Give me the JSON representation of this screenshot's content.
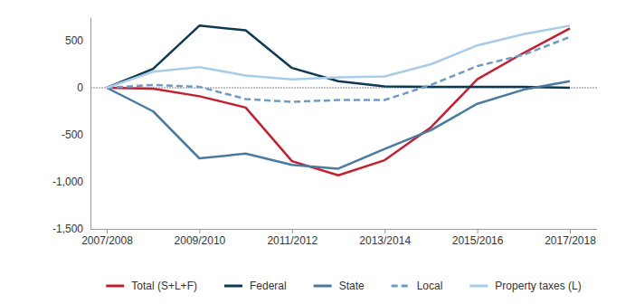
{
  "chart_data": {
    "type": "line",
    "categories": [
      "2007/2008",
      null,
      "2009/2010",
      null,
      "2011/2012",
      null,
      "2013/2014",
      null,
      "2015/2016",
      null,
      "2017/2018"
    ],
    "series": [
      {
        "name": "Total (S+L+F)",
        "color": "#c32032",
        "line_style": "solid",
        "values": [
          0,
          -10,
          -90,
          -210,
          -780,
          -930,
          -770,
          -420,
          90,
          370,
          630
        ]
      },
      {
        "name": "Federal",
        "color": "#0d3a52",
        "line_style": "solid",
        "values": [
          0,
          200,
          660,
          610,
          210,
          70,
          15,
          10,
          10,
          10,
          0
        ]
      },
      {
        "name": "State",
        "color": "#4b7aa0",
        "line_style": "solid",
        "values": [
          0,
          -250,
          -750,
          -700,
          -820,
          -860,
          -650,
          -450,
          -170,
          -20,
          70
        ]
      },
      {
        "name": "Local",
        "color": "#6f9bc4",
        "line_style": "dashed",
        "values": [
          0,
          30,
          10,
          -120,
          -150,
          -130,
          -130,
          30,
          230,
          350,
          540
        ]
      },
      {
        "name": "Property taxes (L)",
        "color": "#a8cbe8",
        "line_style": "solid",
        "values": [
          0,
          170,
          220,
          130,
          90,
          110,
          120,
          250,
          450,
          570,
          660
        ]
      }
    ],
    "ylim": [
      -1500,
      750
    ],
    "yticks": [
      {
        "value": -1500,
        "label": "-1,500"
      },
      {
        "value": -1000,
        "label": "-1,000"
      },
      -500,
      0,
      500
    ],
    "grid": false,
    "legend": "bottom"
  }
}
